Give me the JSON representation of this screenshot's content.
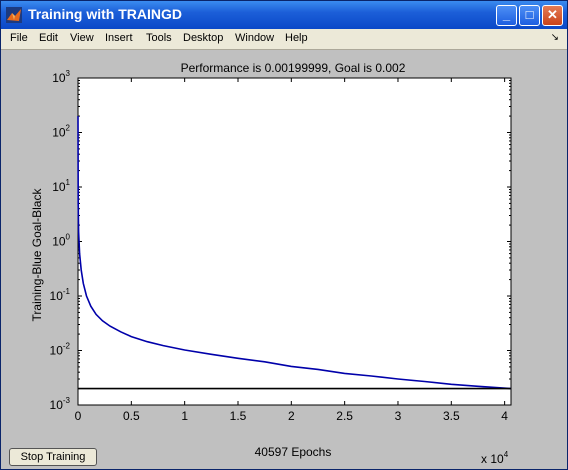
{
  "window": {
    "title": "Training with TRAINGD",
    "icon": "matlab-logo-icon",
    "controls": {
      "minimize": "_",
      "maximize": "□",
      "close": "✕"
    }
  },
  "menu": {
    "items": [
      "File",
      "Edit",
      "View",
      "Insert",
      "Tools",
      "Desktop",
      "Window",
      "Help"
    ],
    "dock_arrow": "↘"
  },
  "chart_data": {
    "type": "line",
    "title": "Performance is 0.00199999, Goal is 0.002",
    "xlabel": "40597 Epochs",
    "ylabel": "Training-Blue  Goal-Black",
    "x_multiplier_label": "x 10",
    "x_multiplier_exponent": "4",
    "xlim": [
      0,
      40597
    ],
    "ylim": [
      0.001,
      1000
    ],
    "yscale": "log",
    "x_ticks": [
      "0",
      "0.5",
      "1",
      "1.5",
      "2",
      "2.5",
      "3",
      "3.5",
      "4"
    ],
    "y_tick_base": "10",
    "y_tick_exponents": [
      "-3",
      "-2",
      "-1",
      "0",
      "1",
      "2",
      "3"
    ],
    "grid": false,
    "legend": "none",
    "series": [
      {
        "color": "#0000aa",
        "x": [
          0,
          20,
          60,
          150,
          300,
          500,
          800,
          1200,
          1700,
          2300,
          3000,
          4000,
          5000,
          6500,
          8000,
          10000,
          12500,
          15000,
          17500,
          20000,
          22500,
          25000,
          27500,
          30000,
          32500,
          35000,
          37500,
          40597
        ],
        "y": [
          200,
          5,
          1.5,
          0.6,
          0.3,
          0.17,
          0.1,
          0.065,
          0.046,
          0.035,
          0.028,
          0.022,
          0.018,
          0.0145,
          0.0123,
          0.0102,
          0.0085,
          0.0072,
          0.0062,
          0.0051,
          0.0045,
          0.0038,
          0.0034,
          0.003,
          0.0027,
          0.0024,
          0.0022,
          0.002
        ]
      },
      {
        "color": "#000000",
        "x": [
          0,
          40597
        ],
        "y": [
          0.002,
          0.002
        ]
      }
    ]
  },
  "stop_button": {
    "label": "Stop Training"
  }
}
